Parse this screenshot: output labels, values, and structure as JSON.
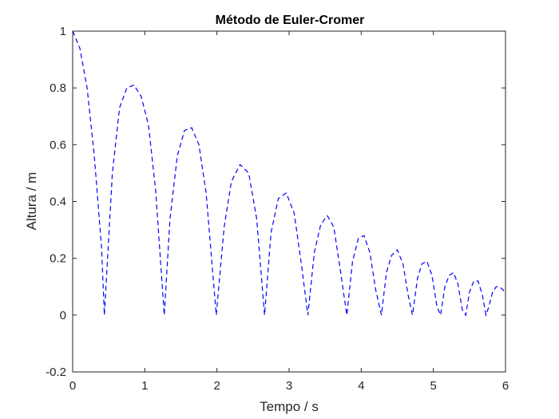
{
  "chart_data": {
    "type": "line",
    "title": "Método de Euler-Cromer",
    "xlabel": "Tempo / s",
    "ylabel": "Altura / m",
    "xlim": [
      0,
      6
    ],
    "ylim": [
      -0.2,
      1
    ],
    "xticks": [
      0,
      1,
      2,
      3,
      4,
      5,
      6
    ],
    "yticks": [
      -0.2,
      0,
      0.2,
      0.4,
      0.6,
      0.8,
      1
    ],
    "xtick_labels": [
      "0",
      "1",
      "2",
      "3",
      "4",
      "5",
      "6"
    ],
    "ytick_labels": [
      "-0.2",
      "0",
      "0.2",
      "0.4",
      "0.6",
      "0.8",
      "1"
    ],
    "grid": false,
    "series": [
      {
        "line_style": "dashed",
        "color": "#0000ff",
        "x": [
          0,
          0.1,
          0.2,
          0.3,
          0.4,
          0.44,
          0.55,
          0.65,
          0.75,
          0.85,
          0.95,
          1.05,
          1.15,
          1.27,
          1.35,
          1.45,
          1.55,
          1.65,
          1.75,
          1.85,
          1.99,
          2.1,
          2.2,
          2.32,
          2.44,
          2.55,
          2.66,
          2.75,
          2.85,
          2.96,
          3.07,
          3.17,
          3.26,
          3.35,
          3.44,
          3.53,
          3.62,
          3.71,
          3.8,
          3.88,
          3.96,
          4.04,
          4.12,
          4.2,
          4.28,
          4.35,
          4.42,
          4.5,
          4.58,
          4.65,
          4.71,
          4.78,
          4.84,
          4.91,
          4.98,
          5.05,
          5.1,
          5.16,
          5.22,
          5.28,
          5.34,
          5.4,
          5.45,
          5.5,
          5.56,
          5.62,
          5.68,
          5.73,
          5.77,
          5.82,
          5.87,
          5.92,
          5.96,
          6.0
        ],
        "y": [
          1.0,
          0.94,
          0.8,
          0.56,
          0.24,
          0.0,
          0.5,
          0.73,
          0.8,
          0.81,
          0.77,
          0.67,
          0.44,
          0.0,
          0.34,
          0.56,
          0.65,
          0.66,
          0.6,
          0.43,
          0.0,
          0.31,
          0.47,
          0.53,
          0.5,
          0.34,
          0.0,
          0.29,
          0.41,
          0.43,
          0.36,
          0.18,
          0.0,
          0.22,
          0.32,
          0.35,
          0.31,
          0.16,
          0.0,
          0.19,
          0.27,
          0.28,
          0.22,
          0.09,
          0.0,
          0.15,
          0.21,
          0.23,
          0.18,
          0.07,
          0.0,
          0.13,
          0.18,
          0.19,
          0.14,
          0.03,
          0.0,
          0.1,
          0.14,
          0.15,
          0.11,
          0.02,
          0.0,
          0.08,
          0.12,
          0.12,
          0.07,
          0.0,
          0.03,
          0.08,
          0.1,
          0.1,
          0.09,
          0.08
        ]
      }
    ]
  }
}
